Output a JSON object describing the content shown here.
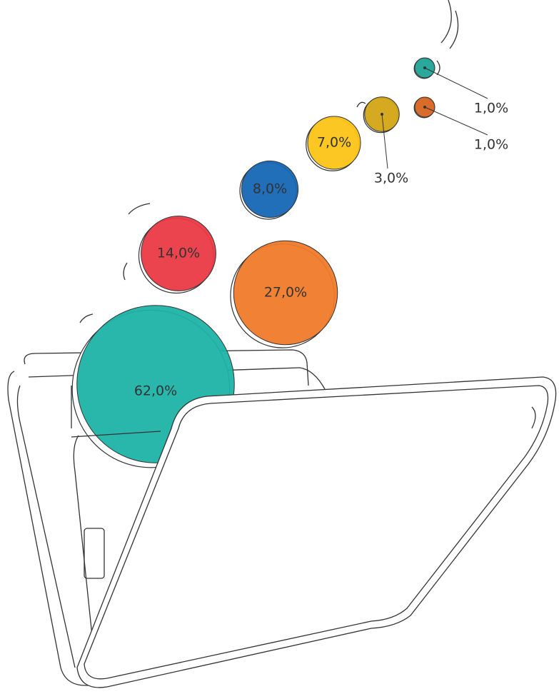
{
  "chart_data": {
    "type": "coins",
    "values": [
      62,
      27,
      14,
      8,
      7,
      3,
      1,
      1
    ],
    "value_labels": [
      "62,0%",
      "27,0%",
      "14,0%",
      "8,0%",
      "7,0%",
      "3,0%",
      "1,0%",
      "1,0%"
    ],
    "colors": [
      "#1fb3a6",
      "#f07a2a",
      "#ea3a45",
      "#1566b5",
      "#fdc417",
      "#d4a514",
      "#1fa396",
      "#d7641f"
    ]
  }
}
